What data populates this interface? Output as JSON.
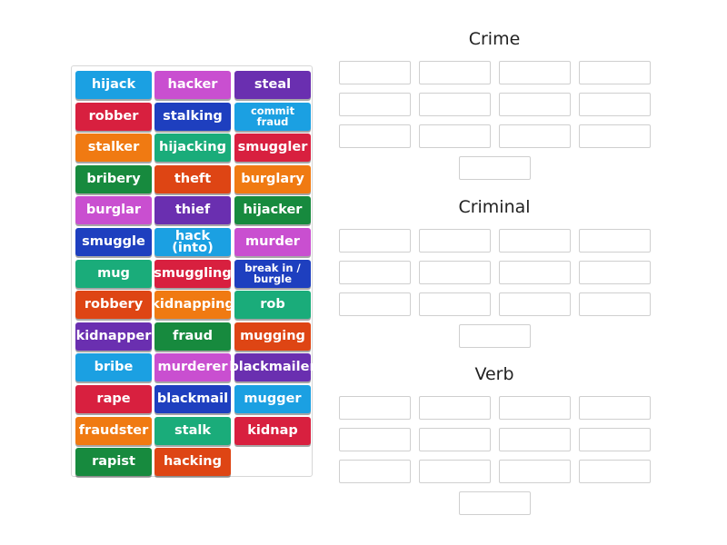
{
  "colors": {
    "blue": "#1ba0e2",
    "magenta": "#c94fd0",
    "purple": "#6a2fb0",
    "red": "#d8203f",
    "navy": "#1e3fbf",
    "orange": "#f07a12",
    "teal": "#1aac7a",
    "green": "#178a3e",
    "burnt": "#de4514"
  },
  "tiles": [
    {
      "label": "hijack",
      "color": "blue"
    },
    {
      "label": "hacker",
      "color": "magenta"
    },
    {
      "label": "steal",
      "color": "purple"
    },
    {
      "label": "robber",
      "color": "red"
    },
    {
      "label": "stalking",
      "color": "navy"
    },
    {
      "label": "commit fraud",
      "color": "blue",
      "small": true
    },
    {
      "label": "stalker",
      "color": "orange"
    },
    {
      "label": "hijacking",
      "color": "teal"
    },
    {
      "label": "smuggler",
      "color": "red"
    },
    {
      "label": "bribery",
      "color": "green"
    },
    {
      "label": "theft",
      "color": "burnt"
    },
    {
      "label": "burglary",
      "color": "orange"
    },
    {
      "label": "burglar",
      "color": "magenta"
    },
    {
      "label": "thief",
      "color": "purple"
    },
    {
      "label": "hijacker",
      "color": "green"
    },
    {
      "label": "smuggle",
      "color": "navy"
    },
    {
      "label": "hack (into)",
      "color": "blue"
    },
    {
      "label": "murder",
      "color": "magenta"
    },
    {
      "label": "mug",
      "color": "teal"
    },
    {
      "label": "smuggling",
      "color": "red"
    },
    {
      "label": "break in / burgle",
      "color": "navy",
      "small": true
    },
    {
      "label": "robbery",
      "color": "burnt"
    },
    {
      "label": "kidnapping",
      "color": "orange"
    },
    {
      "label": "rob",
      "color": "teal"
    },
    {
      "label": "kidnapper",
      "color": "purple"
    },
    {
      "label": "fraud",
      "color": "green"
    },
    {
      "label": "mugging",
      "color": "burnt"
    },
    {
      "label": "bribe",
      "color": "blue"
    },
    {
      "label": "murderer",
      "color": "magenta"
    },
    {
      "label": "blackmailer",
      "color": "purple"
    },
    {
      "label": "rape",
      "color": "red"
    },
    {
      "label": "blackmail",
      "color": "navy"
    },
    {
      "label": "mugger",
      "color": "blue"
    },
    {
      "label": "fraudster",
      "color": "orange"
    },
    {
      "label": "stalk",
      "color": "teal"
    },
    {
      "label": "kidnap",
      "color": "red"
    },
    {
      "label": "rapist",
      "color": "green"
    },
    {
      "label": "hacking",
      "color": "burnt"
    }
  ],
  "groups": [
    {
      "title": "Crime"
    },
    {
      "title": "Criminal"
    },
    {
      "title": "Verb"
    }
  ]
}
